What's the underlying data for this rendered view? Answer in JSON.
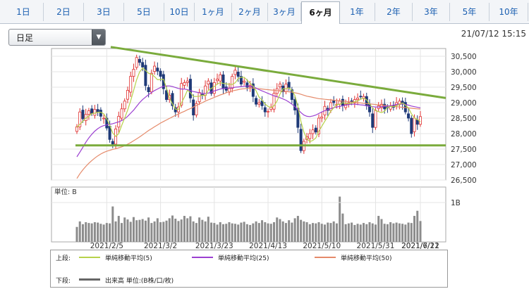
{
  "tabs": [
    "1日",
    "2日",
    "3日",
    "5日",
    "10日",
    "1ヶ月",
    "2ヶ月",
    "3ヶ月",
    "6ヶ月",
    "1年",
    "2年",
    "3年",
    "5年",
    "10年"
  ],
  "active_tab": "6ヶ月",
  "period_select": {
    "value": "日足"
  },
  "timestamp": "21/07/12 15:15",
  "volume_panel": {
    "unit_label": "単位: B",
    "tick_label": "1B"
  },
  "legend": {
    "upper_label": "上段:",
    "lower_label": "下段:",
    "ma5": "単純移動平均(5)",
    "ma25": "単純移動平均(25)",
    "ma50": "単純移動平均(50)",
    "volume": "出来高 単位:(B株/口/枚)"
  },
  "colors": {
    "up": "#e03030",
    "down": "#1f3a78",
    "ma5": "#b7d24a",
    "ma25": "#9b3fd1",
    "ma50": "#e58a6a",
    "trendline": "#7aab3c",
    "volume": "#8c8c8c"
  },
  "chart_data": {
    "type": "candlestick",
    "ylim": [
      26500,
      30750
    ],
    "yticks": [
      26500,
      27000,
      27500,
      28000,
      28500,
      29000,
      29500,
      30000,
      30500
    ],
    "ytick_labels": [
      "26,500",
      "27,000",
      "27,500",
      "28,000",
      "28,500",
      "29,000",
      "29,500",
      "30,000",
      "30,500"
    ],
    "xticks": [
      "2021/2/5",
      "2021/3/2",
      "2021/3/23",
      "2021/4/13",
      "2021/5/10",
      "2021/5/31",
      "2021/6/21",
      "2021/7/12"
    ],
    "close": [
      28220,
      28700,
      28480,
      28620,
      28740,
      28650,
      28780,
      28700,
      28560,
      28500,
      28180,
      27810,
      27660,
      28150,
      28560,
      28800,
      29050,
      29400,
      29850,
      30080,
      30460,
      30300,
      30150,
      29550,
      29350,
      29950,
      30180,
      30020,
      29850,
      29450,
      29100,
      29240,
      28900,
      28700,
      28860,
      29620,
      29650,
      29700,
      29150,
      28600,
      28970,
      29330,
      29240,
      29540,
      29700,
      29300,
      29650,
      29760,
      29900,
      29450,
      29400,
      29460,
      29850,
      30050,
      29850,
      29600,
      29700,
      29500,
      29550,
      29200,
      28950,
      29000,
      28900,
      28700,
      28720,
      28850,
      29300,
      29450,
      29600,
      29350,
      29600,
      29480,
      29100,
      28760,
      28200,
      27450,
      27750,
      27900,
      28000,
      28120,
      28050,
      28500,
      28540,
      28880,
      28750,
      29000,
      29000,
      28950,
      29050,
      28900,
      28950,
      29000,
      29050,
      29100,
      29150,
      29200,
      29200,
      28900,
      28700,
      28200,
      28750,
      28900,
      28950,
      28800,
      28850,
      28900,
      28850,
      29000,
      29050,
      28950,
      28700,
      28500,
      28000,
      28500,
      28300,
      28550
    ],
    "ma5": [
      28200,
      28300,
      28400,
      28500,
      28560,
      28650,
      28660,
      28690,
      28690,
      28640,
      28480,
      28270,
      28020,
      27910,
      28000,
      28260,
      28510,
      28760,
      29060,
      29400,
      29740,
      29990,
      30120,
      30040,
      29950,
      29920,
      29840,
      29740,
      29750,
      29760,
      29480,
      29150,
      28960,
      28790,
      28780,
      28990,
      29180,
      29400,
      29330,
      29200,
      29200,
      29210,
      29240,
      29220,
      29400,
      29460,
      29520,
      29600,
      29650,
      29620,
      29610,
      29590,
      29590,
      29640,
      29780,
      29820,
      29820,
      29730,
      29630,
      29540,
      29380,
      29180,
      29080,
      28960,
      28880,
      28840,
      28900,
      29050,
      29280,
      29450,
      29450,
      29480,
      29400,
      29230,
      28880,
      28400,
      28050,
      27830,
      27740,
      27780,
      27860,
      28080,
      28240,
      28400,
      28550,
      28730,
      28830,
      28940,
      28950,
      29000,
      28980,
      28970,
      28980,
      29030,
      29060,
      29110,
      29150,
      29090,
      28960,
      28830,
      28740,
      28710,
      28680,
      28720,
      28850,
      28880,
      28870,
      28890,
      28950,
      28990,
      28920,
      28830,
      28640,
      28510,
      28460,
      28380
    ],
    "ma25": [
      27250,
      27400,
      27560,
      27720,
      27860,
      27980,
      28080,
      28160,
      28220,
      28260,
      28280,
      28300,
      28320,
      28350,
      28380,
      28420,
      28480,
      28560,
      28660,
      28760,
      28880,
      29000,
      29100,
      29180,
      29260,
      29330,
      29390,
      29440,
      29490,
      29530,
      29540,
      29540,
      29520,
      29490,
      29460,
      29440,
      29440,
      29420,
      29390,
      29360,
      29340,
      29320,
      29300,
      29300,
      29310,
      29340,
      29380,
      29410,
      29440,
      29460,
      29470,
      29470,
      29480,
      29500,
      29510,
      29520,
      29530,
      29540,
      29530,
      29510,
      29470,
      29420,
      29380,
      29340,
      29300,
      29260,
      29220,
      29190,
      29160,
      29120,
      29080,
      29020,
      28950,
      28870,
      28780,
      28680,
      28600,
      28560,
      28550,
      28570,
      28600,
      28650,
      28700,
      28740,
      28780,
      28810,
      28840,
      28860,
      28880,
      28900,
      28920,
      28940,
      28950,
      28950,
      28940,
      28930,
      28920,
      28900,
      28880,
      28870,
      28860,
      28860,
      28870,
      28880,
      28890,
      28900,
      28920,
      28940,
      28960,
      28960,
      28940,
      28920,
      28890,
      28870,
      28850,
      28830
    ],
    "ma50": [
      26550,
      26700,
      26830,
      26940,
      27040,
      27130,
      27210,
      27280,
      27340,
      27390,
      27430,
      27460,
      27490,
      27510,
      27540,
      27570,
      27610,
      27660,
      27710,
      27770,
      27830,
      27890,
      27960,
      28030,
      28100,
      28160,
      28220,
      28280,
      28340,
      28390,
      28440,
      28490,
      28540,
      28590,
      28630,
      28680,
      28720,
      28770,
      28810,
      28860,
      28910,
      28960,
      29000,
      29050,
      29090,
      29130,
      29170,
      29210,
      29250,
      29280,
      29320,
      29350,
      29380,
      29400,
      29420,
      29440,
      29450,
      29460,
      29470,
      29470,
      29460,
      29450,
      29440,
      29430,
      29420,
      29410,
      29400,
      29390,
      29380,
      29370,
      29360,
      29350,
      29340,
      29320,
      29300,
      29270,
      29240,
      29210,
      29190,
      29170,
      29150,
      29130,
      29120,
      29110,
      29100,
      29090,
      29080,
      29070,
      29060,
      29050,
      29040,
      29030,
      29020,
      29010,
      29000,
      28990,
      28980,
      28970,
      28960,
      28950,
      28940,
      28930,
      28920,
      28910,
      28900,
      28890,
      28880,
      28870,
      28860,
      28850,
      28840,
      28830,
      28820,
      28810,
      28800,
      28790
    ],
    "volume_rel": [
      0.38,
      0.52,
      0.45,
      0.5,
      0.48,
      0.47,
      0.5,
      0.49,
      0.46,
      0.44,
      0.48,
      0.47,
      0.9,
      0.52,
      0.66,
      0.48,
      0.62,
      0.57,
      0.51,
      0.63,
      0.55,
      0.56,
      0.58,
      0.54,
      0.62,
      0.48,
      0.52,
      0.6,
      0.5,
      0.51,
      0.54,
      0.6,
      0.67,
      0.59,
      0.53,
      0.57,
      0.66,
      0.6,
      0.65,
      0.52,
      0.48,
      0.62,
      0.56,
      0.52,
      0.64,
      0.49,
      0.48,
      0.44,
      0.5,
      0.45,
      0.46,
      0.5,
      0.47,
      0.46,
      0.44,
      0.49,
      0.51,
      0.45,
      0.43,
      0.47,
      0.52,
      0.48,
      0.55,
      0.5,
      0.47,
      0.46,
      0.5,
      0.62,
      0.58,
      0.52,
      0.48,
      0.55,
      0.49,
      0.6,
      0.66,
      0.56,
      0.52,
      0.5,
      0.45,
      0.48,
      0.47,
      0.5,
      0.46,
      0.44,
      0.49,
      0.48,
      0.52,
      0.47,
      1.15,
      0.72,
      0.45,
      0.47,
      0.49,
      0.43,
      0.46,
      0.44,
      0.48,
      0.45,
      0.5,
      0.47,
      0.44,
      0.66,
      0.58,
      0.46,
      0.45,
      0.5,
      0.47,
      0.49,
      0.47,
      0.46,
      0.44,
      0.49,
      0.48,
      0.66,
      0.79,
      0.53
    ],
    "trendlines": [
      {
        "from": [
          "2021/1/14",
          30800
        ],
        "to": [
          "2021/7/22",
          29150
        ]
      },
      {
        "from": [
          "2021/1/14",
          27620
        ],
        "to": [
          "2021/7/22",
          27620
        ]
      }
    ]
  }
}
